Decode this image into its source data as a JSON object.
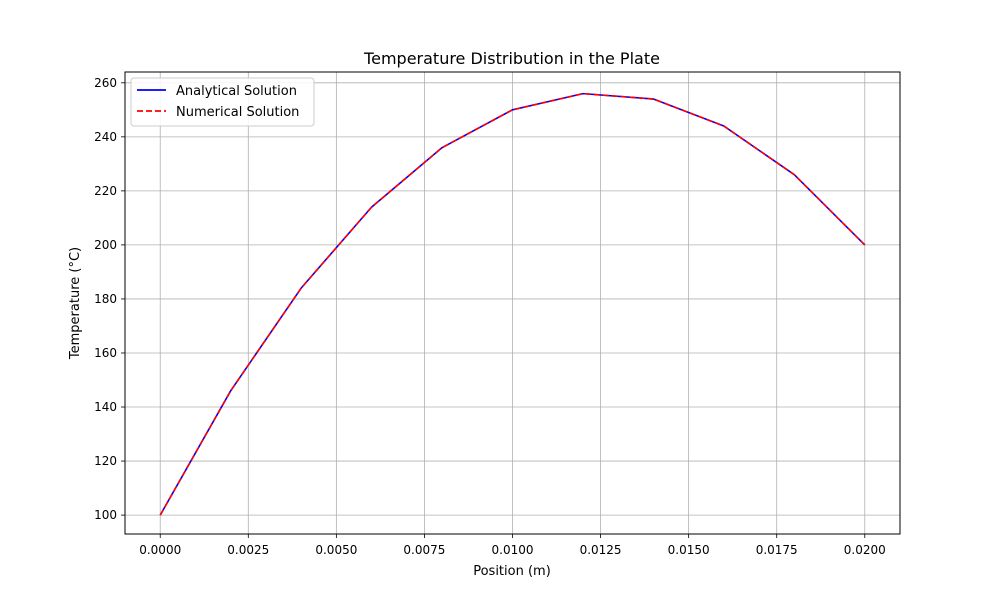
{
  "chart_data": {
    "type": "line",
    "title": "Temperature Distribution in the Plate",
    "xlabel": "Position (m)",
    "ylabel": "Temperature (°C)",
    "xlim": [
      -0.001,
      0.021
    ],
    "ylim": [
      93,
      264
    ],
    "xticks": [
      0.0,
      0.0025,
      0.005,
      0.0075,
      0.01,
      0.0125,
      0.015,
      0.0175,
      0.02
    ],
    "xtick_labels": [
      "0.0000",
      "0.0025",
      "0.0050",
      "0.0075",
      "0.0100",
      "0.0125",
      "0.0150",
      "0.0175",
      "0.0200"
    ],
    "yticks": [
      100,
      120,
      140,
      160,
      180,
      200,
      220,
      240,
      260
    ],
    "ytick_labels": [
      "100",
      "120",
      "140",
      "160",
      "180",
      "200",
      "220",
      "240",
      "260"
    ],
    "grid": true,
    "legend_position": "top-left",
    "x": [
      0.0,
      0.002,
      0.004,
      0.006,
      0.008,
      0.01,
      0.012,
      0.014,
      0.016,
      0.018,
      0.02
    ],
    "series": [
      {
        "name": "Analytical Solution",
        "color": "#0000ff",
        "style": "solid",
        "values": [
          100,
          146,
          184,
          214,
          236,
          250,
          256,
          254,
          244,
          226,
          200
        ]
      },
      {
        "name": "Numerical Solution",
        "color": "#ff0000",
        "style": "dashed",
        "values": [
          100,
          146,
          184,
          214,
          236,
          250,
          256,
          254,
          244,
          226,
          200
        ]
      }
    ]
  }
}
